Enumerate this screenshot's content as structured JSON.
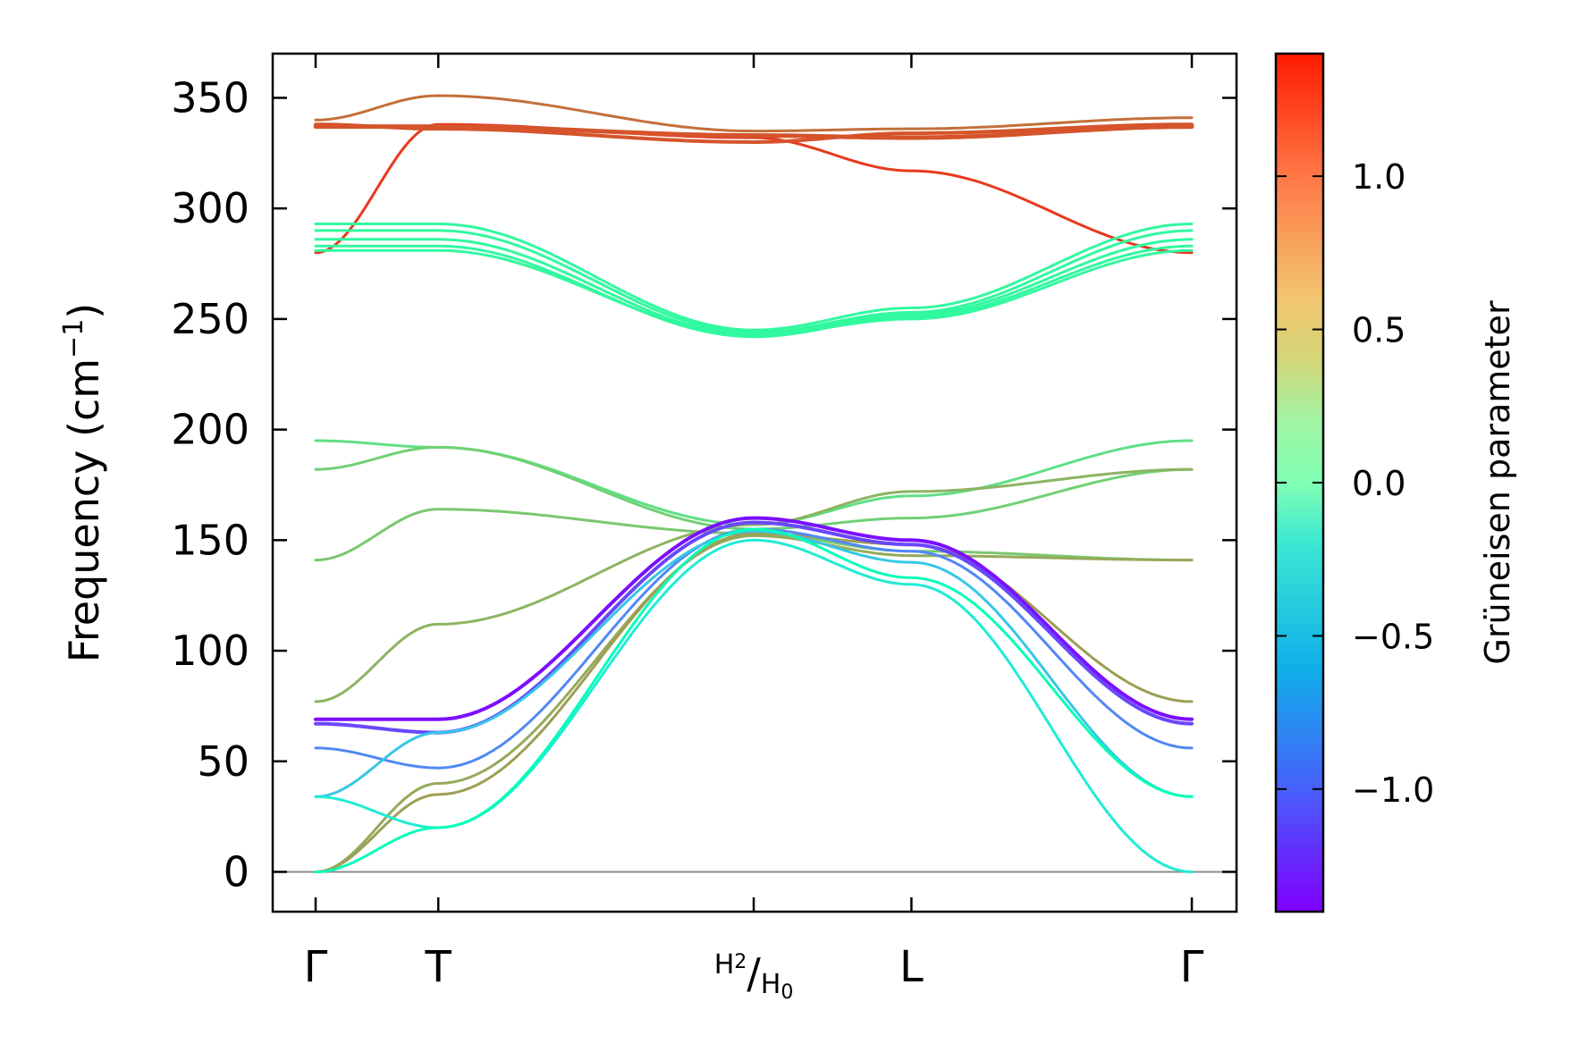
{
  "chart_data": {
    "type": "line",
    "title": "",
    "xlabel": "",
    "ylabel": "Frequency (cm",
    "ylabel_sup": "−1",
    "ylabel_close": ")",
    "ylim": [
      -18,
      370
    ],
    "yticks": [
      "0",
      "50",
      "100",
      "150",
      "200",
      "250",
      "300",
      "350"
    ],
    "ytick_values": [
      0,
      50,
      100,
      150,
      200,
      250,
      300,
      350
    ],
    "x_path_positions": [
      0,
      0.14,
      0.5,
      0.68,
      1.0
    ],
    "xticks": [
      {
        "label": "Γ",
        "pos": 0
      },
      {
        "label": "T",
        "pos": 0.14
      },
      {
        "label": "H",
        "sub_a": "2",
        "slash": "/",
        "label_b": "H",
        "sub_b": "0",
        "pos": 0.5
      },
      {
        "label": "L",
        "pos": 0.68
      },
      {
        "label": "Γ",
        "pos": 1.0
      }
    ],
    "zero_line": 0,
    "colorbar": {
      "label": "Grüneisen parameter",
      "range": [
        -1.4,
        1.4
      ],
      "ticks": [
        {
          "value": 1.0,
          "label": "1.0"
        },
        {
          "value": 0.5,
          "label": "0.5"
        },
        {
          "value": 0.0,
          "label": "0.0"
        },
        {
          "value": -0.5,
          "label": "−0.5"
        },
        {
          "value": -1.0,
          "label": "−1.0"
        }
      ],
      "colormap": "rainbow"
    },
    "series": [
      {
        "name": "branch-1",
        "gamma": 1.2,
        "width": 3,
        "values": [
          280,
          338,
          332,
          317,
          280
        ]
      },
      {
        "name": "branch-2",
        "gamma": 1.1,
        "width": 5,
        "values": [
          337,
          337,
          333,
          332,
          337
        ]
      },
      {
        "name": "branch-3",
        "gamma": 1.1,
        "width": 4,
        "values": [
          338,
          336,
          330,
          334,
          338
        ]
      },
      {
        "name": "branch-4",
        "gamma": 1.0,
        "width": 3,
        "values": [
          340,
          351,
          335,
          336,
          341
        ]
      },
      {
        "name": "branch-5",
        "gamma": 0.2,
        "width": 3,
        "values": [
          293,
          293,
          245,
          255,
          293
        ]
      },
      {
        "name": "branch-6",
        "gamma": 0.2,
        "width": 3,
        "values": [
          290,
          290,
          244,
          253,
          290
        ]
      },
      {
        "name": "branch-7",
        "gamma": 0.2,
        "width": 3,
        "values": [
          286,
          286,
          243,
          252,
          286
        ]
      },
      {
        "name": "branch-8",
        "gamma": 0.2,
        "width": 3,
        "values": [
          283,
          283,
          242,
          251,
          283
        ]
      },
      {
        "name": "branch-9",
        "gamma": 0.2,
        "width": 3,
        "values": [
          281,
          281,
          243,
          250,
          281
        ]
      },
      {
        "name": "branch-10",
        "gamma": 0.45,
        "width": 3,
        "values": [
          195,
          192,
          157,
          170,
          195
        ]
      },
      {
        "name": "branch-11",
        "gamma": 0.55,
        "width": 3,
        "values": [
          182,
          192,
          155,
          160,
          182
        ]
      },
      {
        "name": "branch-12",
        "gamma": 0.6,
        "width": 3,
        "values": [
          141,
          164,
          153,
          145,
          141
        ]
      },
      {
        "name": "branch-13",
        "gamma": 0.7,
        "width": 3,
        "values": [
          77,
          112,
          157,
          172,
          182
        ]
      },
      {
        "name": "branch-14",
        "gamma": 0.75,
        "width": 3,
        "values": [
          0,
          40,
          152,
          143,
          141
        ]
      },
      {
        "name": "branch-15",
        "gamma": 0.8,
        "width": 3,
        "values": [
          0,
          35,
          153,
          148,
          77
        ]
      },
      {
        "name": "branch-16",
        "gamma": -1.35,
        "width": 4,
        "values": [
          69,
          69,
          160,
          150,
          69
        ]
      },
      {
        "name": "branch-17",
        "gamma": -1.15,
        "width": 4,
        "values": [
          67,
          63,
          158,
          148,
          67
        ]
      },
      {
        "name": "branch-18",
        "gamma": -0.9,
        "width": 3,
        "values": [
          56,
          47,
          155,
          145,
          56
        ]
      },
      {
        "name": "branch-19",
        "gamma": -0.6,
        "width": 3,
        "values": [
          34,
          63,
          154,
          140,
          34
        ]
      },
      {
        "name": "branch-20",
        "gamma": -0.35,
        "width": 3,
        "values": [
          34,
          20,
          150,
          130,
          0
        ]
      },
      {
        "name": "branch-21",
        "gamma": -0.05,
        "width": 3,
        "values": [
          0,
          20,
          155,
          133,
          34
        ]
      }
    ]
  }
}
